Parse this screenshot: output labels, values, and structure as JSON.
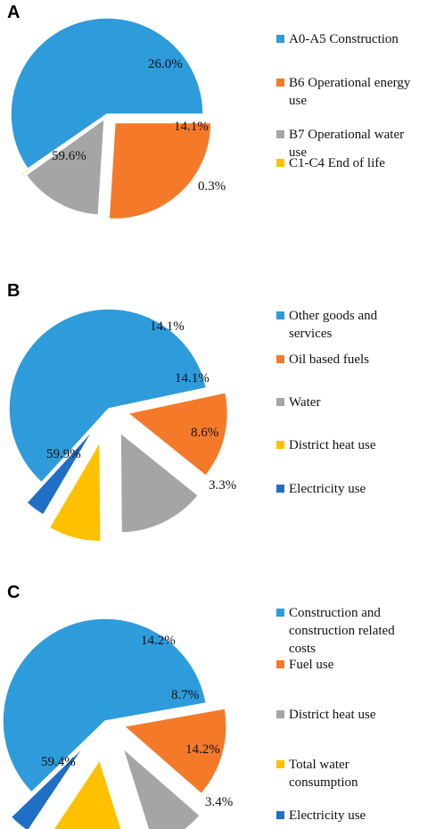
{
  "chart_data": [
    {
      "panel": "A",
      "type": "pie",
      "slices": [
        {
          "name": "A0-A5 Construction",
          "value": 59.6,
          "label": "59.6%",
          "color": "#2E9BDB"
        },
        {
          "name": "B6 Operational energy use",
          "value": 26.0,
          "label": "26.0%",
          "color": "#F47A2A"
        },
        {
          "name": "B7 Operational water use",
          "value": 14.1,
          "label": "14.1%",
          "color": "#A5A5A5"
        },
        {
          "name": "C1-C4 End of life",
          "value": 0.3,
          "label": "0.3%",
          "color": "#FFC000"
        }
      ],
      "legend": [
        {
          "lines": [
            "A0-A5 Construction"
          ],
          "color": "#2E9BDB"
        },
        {
          "lines": [
            "B6 Operational energy",
            "use"
          ],
          "color": "#F47A2A"
        },
        {
          "lines": [
            "B7 Operational water",
            "use"
          ],
          "color": "#A5A5A5"
        },
        {
          "lines": [
            "C1-C4 End of life"
          ],
          "color": "#FFC000"
        }
      ]
    },
    {
      "panel": "B",
      "type": "pie",
      "slices": [
        {
          "name": "Other goods and services",
          "value": 59.9,
          "label": "59.9%",
          "color": "#2E9BDB"
        },
        {
          "name": "Oil based fuels",
          "value": 14.1,
          "label": "14.1%",
          "color": "#F47A2A"
        },
        {
          "name": "Water",
          "value": 14.1,
          "label": "14.1%",
          "color": "#A5A5A5"
        },
        {
          "name": "District heat use",
          "value": 8.6,
          "label": "8.6%",
          "color": "#FFC000"
        },
        {
          "name": "Electricity use",
          "value": 3.3,
          "label": "3.3%",
          "color": "#1F6FC5"
        }
      ],
      "legend": [
        {
          "lines": [
            "Other goods and",
            "services"
          ],
          "color": "#2E9BDB"
        },
        {
          "lines": [
            "Oil based fuels"
          ],
          "color": "#F47A2A"
        },
        {
          "lines": [
            "Water"
          ],
          "color": "#A5A5A5"
        },
        {
          "lines": [
            "District heat use"
          ],
          "color": "#FFC000"
        },
        {
          "lines": [
            "Electricity use"
          ],
          "color": "#1F6FC5"
        }
      ]
    },
    {
      "panel": "C",
      "type": "pie",
      "slices": [
        {
          "name": "Construction and construction related costs",
          "value": 59.4,
          "label": "59.4%",
          "color": "#2E9BDB"
        },
        {
          "name": "Fuel use",
          "value": 14.2,
          "label": "14.2%",
          "color": "#F47A2A"
        },
        {
          "name": "District heat use",
          "value": 8.7,
          "label": "8.7%",
          "color": "#A5A5A5"
        },
        {
          "name": "Total water consumption",
          "value": 14.2,
          "label": "14.2%",
          "color": "#FFC000"
        },
        {
          "name": "Electricity use",
          "value": 3.4,
          "label": "3.4%",
          "color": "#1F6FC5"
        }
      ],
      "legend": [
        {
          "lines": [
            "Construction and",
            "construction related",
            "costs"
          ],
          "color": "#2E9BDB"
        },
        {
          "lines": [
            "Fuel use"
          ],
          "color": "#F47A2A"
        },
        {
          "lines": [
            "District heat use"
          ],
          "color": "#A5A5A5"
        },
        {
          "lines": [
            "Total water",
            "consumption"
          ],
          "color": "#FFC000"
        },
        {
          "lines": [
            "Electricity use"
          ],
          "color": "#1F6FC5"
        }
      ]
    }
  ]
}
